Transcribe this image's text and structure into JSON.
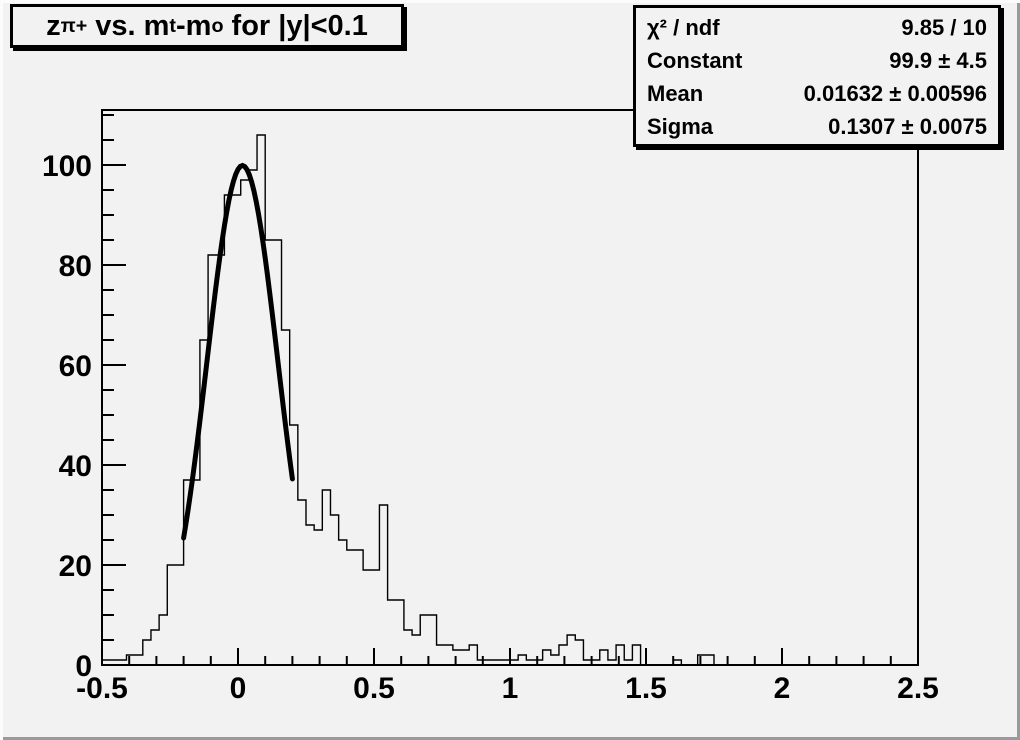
{
  "title": {
    "plain": "z_{π+} vs. m_{t}-m_{o} for |y|<0.1",
    "parts": [
      {
        "text": "z"
      },
      {
        "text": "π+",
        "sub": true
      },
      {
        "text": " vs. m"
      },
      {
        "text": "t",
        "sub": true
      },
      {
        "text": "-m"
      },
      {
        "text": "o",
        "sub": true
      },
      {
        "text": " for |y|<0.1"
      }
    ]
  },
  "stats": {
    "rows": [
      {
        "label": "χ² / ndf",
        "value": "9.85 / 10"
      },
      {
        "label": "Constant",
        "value": "99.9 ± 4.5"
      },
      {
        "label": "Mean",
        "value": "0.01632 ± 0.00596"
      },
      {
        "label": "Sigma",
        "value": "0.1307 ± 0.0075"
      }
    ]
  },
  "chart_data": {
    "type": "bar",
    "subtype": "histogram-step",
    "title": "z_{π+} vs. m_{t}-m_{o} for |y|<0.1",
    "xlabel": "",
    "ylabel": "",
    "xlim": [
      -0.5,
      2.5
    ],
    "ylim": [
      0,
      111
    ],
    "grid": false,
    "legend": "none",
    "bin_start": -0.5,
    "bin_width": 0.03,
    "n_bins": 100,
    "counts": [
      1,
      1,
      1,
      2,
      2,
      5,
      7,
      10,
      20,
      20,
      37,
      37,
      65,
      82,
      82,
      94,
      94,
      97,
      99,
      106,
      85,
      85,
      67,
      48,
      33,
      28,
      27,
      35,
      30,
      25,
      23,
      23,
      19,
      19,
      32,
      13,
      13,
      7,
      6,
      10,
      10,
      4,
      4,
      3,
      3,
      4,
      1,
      1,
      1,
      1,
      1,
      2,
      1,
      1,
      3,
      2,
      4,
      6,
      5,
      1,
      1,
      3,
      1,
      4,
      1,
      4,
      0,
      0,
      0,
      0,
      1,
      0,
      0,
      2,
      2,
      0,
      0,
      0,
      0,
      0,
      0,
      0,
      0,
      0,
      0,
      0,
      0,
      0,
      0,
      0,
      0,
      0,
      0,
      0,
      0,
      0,
      0,
      0,
      0,
      0
    ],
    "fit": {
      "shape": "gaussian",
      "constant": 99.9,
      "mean": 0.01632,
      "sigma": 0.1307,
      "range": [
        -0.2,
        0.2
      ]
    },
    "x_ticks": [
      {
        "value": -0.5,
        "label": "-0.5"
      },
      {
        "value": 0,
        "label": "0"
      },
      {
        "value": 0.5,
        "label": "0.5"
      },
      {
        "value": 1,
        "label": "1"
      },
      {
        "value": 1.5,
        "label": "1.5"
      },
      {
        "value": 2,
        "label": "2"
      },
      {
        "value": 2.5,
        "label": "2.5"
      }
    ],
    "y_ticks": [
      {
        "value": 0,
        "label": "0"
      },
      {
        "value": 20,
        "label": "20"
      },
      {
        "value": 40,
        "label": "40"
      },
      {
        "value": 60,
        "label": "60"
      },
      {
        "value": 80,
        "label": "80"
      },
      {
        "value": 100,
        "label": "100"
      }
    ],
    "x_minor_step": 0.1,
    "y_minor_step": 5,
    "colors": {
      "line": "#000000",
      "background": "#f2f2f2",
      "text": "#000000"
    }
  }
}
